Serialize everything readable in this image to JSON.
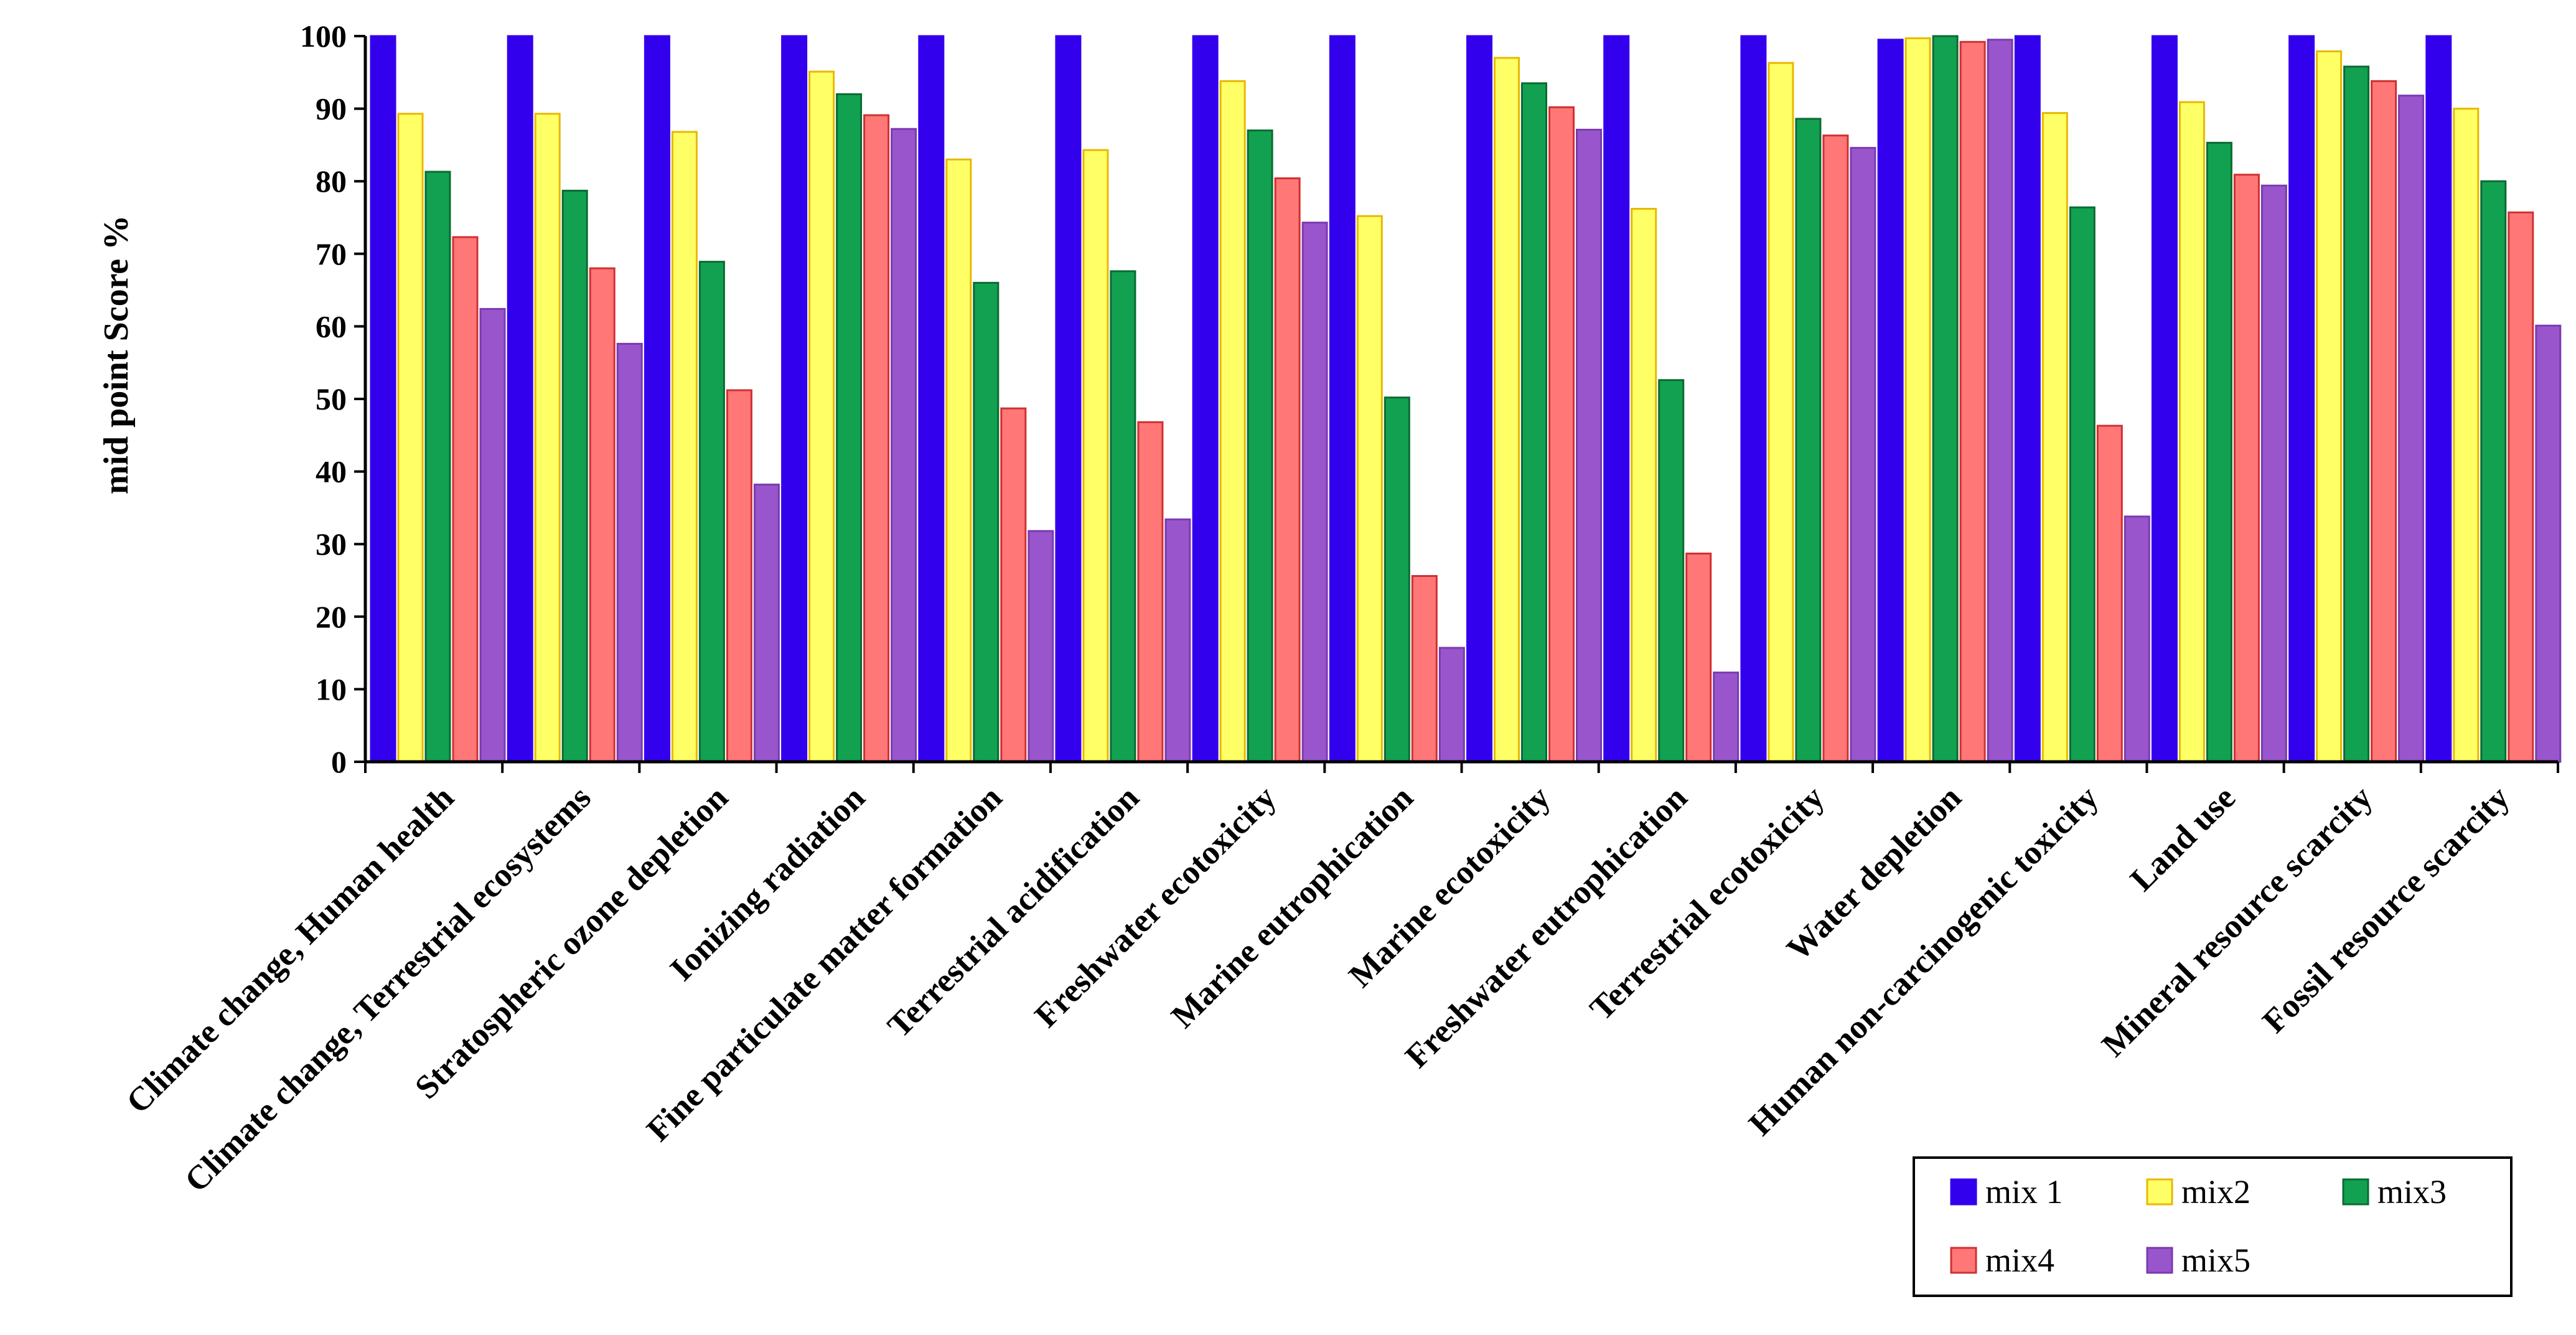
{
  "chart_data": {
    "type": "bar",
    "title": "",
    "xlabel": "",
    "ylabel": "mid point Score %",
    "ylim": [
      0,
      100
    ],
    "yticks": [
      0,
      10,
      20,
      30,
      40,
      50,
      60,
      70,
      80,
      90,
      100
    ],
    "grid": false,
    "legend_position": "bottom-right",
    "categories": [
      "Climate change, Human health",
      "Climate change, Terrestrial ecosystems",
      "Stratospheric ozone depletion",
      "Ionizing radiation",
      "Fine particulate matter formation",
      "Terrestrial acidification",
      "Freshwater ecotoxicity",
      "Marine eutrophication",
      "Marine ecotoxicity",
      "Freshwater eutrophication",
      "Terrestrial ecotoxicity",
      "Water depletion",
      "Human non-carcinogenic toxicity",
      "Land use",
      "Mineral resource scarcity",
      "Fossil resource scarcity"
    ],
    "series": [
      {
        "name": "mix 1",
        "color": "#3300ee",
        "stroke": "#3300ee",
        "values": [
          100,
          100,
          100,
          100,
          100,
          100,
          100,
          100,
          100,
          100,
          100,
          99.5,
          100,
          100,
          100,
          100
        ]
      },
      {
        "name": "mix2",
        "color": "#ffff66",
        "stroke": "#e8b800",
        "values": [
          89.3,
          89.3,
          86.8,
          95.1,
          83.0,
          84.3,
          93.8,
          75.2,
          97.0,
          76.2,
          96.3,
          99.7,
          89.4,
          90.9,
          97.9,
          90.0
        ]
      },
      {
        "name": "mix3",
        "color": "#12a150",
        "stroke": "#0a6b33",
        "values": [
          81.3,
          78.7,
          68.9,
          92.0,
          66.0,
          67.6,
          87.0,
          50.2,
          93.5,
          52.6,
          88.6,
          100,
          76.4,
          85.3,
          95.8,
          80.0
        ]
      },
      {
        "name": "mix4",
        "color": "#ff7777",
        "stroke": "#d03030",
        "values": [
          72.3,
          68.0,
          51.2,
          89.1,
          48.7,
          46.8,
          80.4,
          25.6,
          90.2,
          28.7,
          86.3,
          99.2,
          46.3,
          80.9,
          93.8,
          75.7
        ]
      },
      {
        "name": "mix5",
        "color": "#9955cc",
        "stroke": "#7a3ab0",
        "values": [
          62.4,
          57.6,
          38.2,
          87.2,
          31.8,
          33.4,
          74.3,
          15.7,
          87.1,
          12.3,
          84.6,
          99.5,
          33.8,
          79.4,
          91.8,
          60.1
        ]
      }
    ]
  }
}
